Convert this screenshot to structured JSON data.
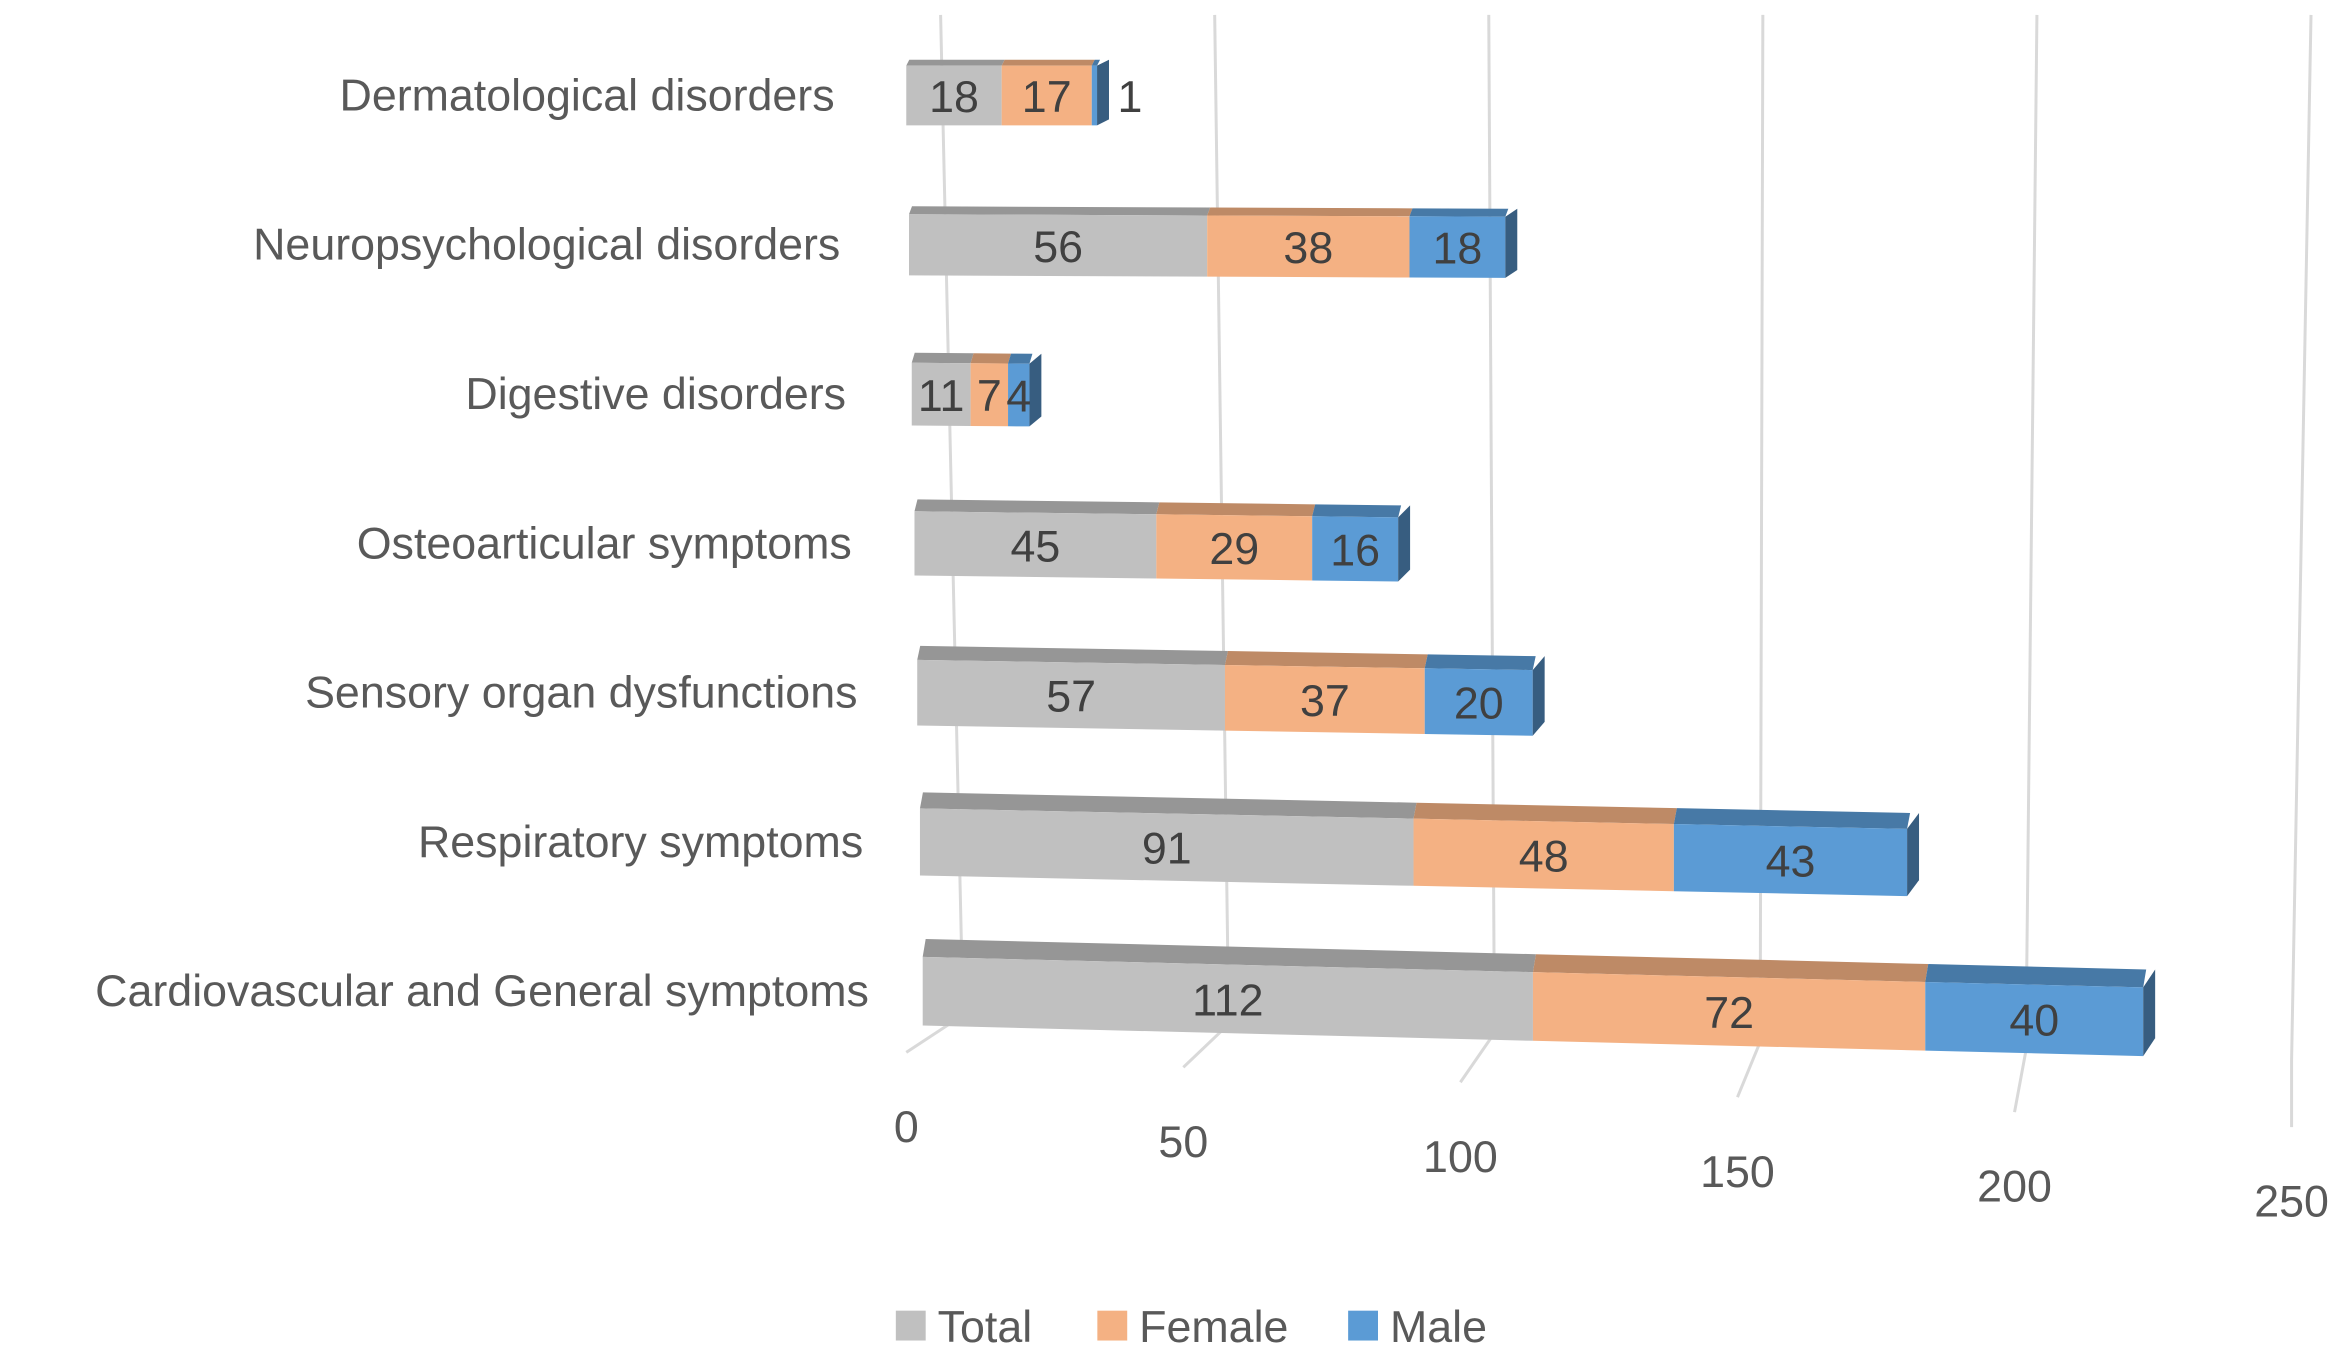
{
  "chart_data": {
    "type": "bar",
    "orientation": "horizontal",
    "stacked": true,
    "style": "3d",
    "title": "",
    "xlabel": "",
    "ylabel": "",
    "categories": [
      "Dermatological disorders",
      "Neuropsychological disorders",
      "Digestive disorders",
      "Osteoarticular symptoms",
      "Sensory organ dysfunctions",
      "Respiratory symptoms",
      "Cardiovascular and General symptoms"
    ],
    "series": [
      {
        "name": "Total",
        "color": "#c0c0c0",
        "values": [
          18,
          56,
          11,
          45,
          57,
          91,
          112
        ]
      },
      {
        "name": "Female",
        "color": "#f4b183",
        "values": [
          17,
          38,
          7,
          29,
          37,
          48,
          72
        ]
      },
      {
        "name": "Male",
        "color": "#5b9bd5",
        "values": [
          1,
          18,
          4,
          16,
          20,
          43,
          40
        ]
      }
    ],
    "xlim": [
      0,
      250
    ],
    "xticks": [
      "0",
      "50",
      "100",
      "150",
      "200",
      "250"
    ],
    "grid": true,
    "legend": "bottom",
    "data_labels": true
  }
}
